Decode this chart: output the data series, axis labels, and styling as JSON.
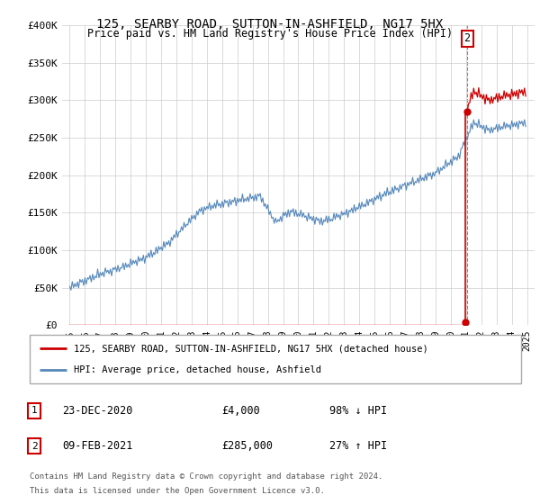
{
  "title": "125, SEARBY ROAD, SUTTON-IN-ASHFIELD, NG17 5HX",
  "subtitle": "Price paid vs. HM Land Registry's House Price Index (HPI)",
  "legend_line1": "125, SEARBY ROAD, SUTTON-IN-ASHFIELD, NG17 5HX (detached house)",
  "legend_line2": "HPI: Average price, detached house, Ashfield",
  "sale1_label": "1",
  "sale1_date": "23-DEC-2020",
  "sale1_price": "£4,000",
  "sale1_hpi": "98% ↓ HPI",
  "sale2_label": "2",
  "sale2_date": "09-FEB-2021",
  "sale2_price": "£285,000",
  "sale2_hpi": "27% ↑ HPI",
  "footnote1": "Contains HM Land Registry data © Crown copyright and database right 2024.",
  "footnote2": "This data is licensed under the Open Government Licence v3.0.",
  "hpi_color": "#5588bb",
  "price_color": "#cc0000",
  "marker_color": "#cc0000",
  "sale1_year": 2020.97,
  "sale1_value": 4000,
  "sale2_year": 2021.08,
  "sale2_value": 285000,
  "ylim": [
    0,
    400000
  ],
  "xlim_start": 1994.5,
  "xlim_end": 2025.5,
  "yticks": [
    0,
    50000,
    100000,
    150000,
    200000,
    250000,
    300000,
    350000,
    400000
  ],
  "ytick_labels": [
    "£0",
    "£50K",
    "£100K",
    "£150K",
    "£200K",
    "£250K",
    "£300K",
    "£350K",
    "£400K"
  ],
  "xticks": [
    1995,
    1996,
    1997,
    1998,
    1999,
    2000,
    2001,
    2002,
    2003,
    2004,
    2005,
    2006,
    2007,
    2008,
    2009,
    2010,
    2011,
    2012,
    2013,
    2014,
    2015,
    2016,
    2017,
    2018,
    2019,
    2020,
    2021,
    2022,
    2023,
    2024,
    2025
  ],
  "background_color": "#ffffff",
  "grid_color": "#cccccc",
  "title_fontsize": 10,
  "subtitle_fontsize": 9
}
